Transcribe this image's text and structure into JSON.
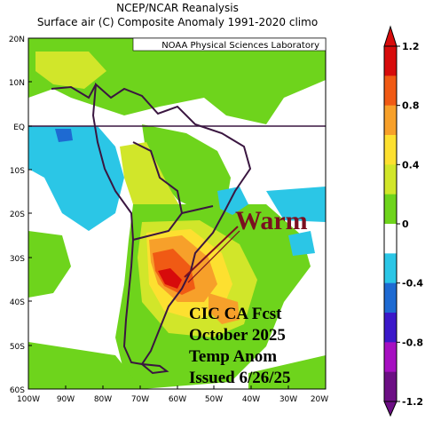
{
  "header": {
    "title": "NCEP/NCAR Reanalysis",
    "subtitle": "Surface air (C) Composite Anomaly 1991-2020 climo"
  },
  "credit": "NOAA Physical Sciences Laboratory",
  "lat_labels": [
    "20N",
    "10N",
    "EQ",
    "10S",
    "20S",
    "30S",
    "40S",
    "50S",
    "60S"
  ],
  "lon_labels": [
    "100W",
    "90W",
    "80W",
    "70W",
    "60W",
    "50W",
    "40W",
    "30W",
    "20W"
  ],
  "annotation": {
    "warm_label": "Warm",
    "forecast_lines": [
      "CIC CA Fcst",
      "October 2025",
      "Temp Anom",
      "Issued 6/26/25"
    ]
  },
  "colorbar": {
    "tick_labels": [
      "1.2",
      "0.8",
      "0.4",
      "0",
      "-0.4",
      "-0.8",
      "-1.2"
    ],
    "colors": [
      "#d70b0b",
      "#f05a14",
      "#f7a02a",
      "#fde030",
      "#d1e62a",
      "#6ed41c",
      "#ffffff",
      "#2bc6e6",
      "#1e6ad2",
      "#3b18c9",
      "#a60fc1",
      "#6c0e84"
    ]
  },
  "grid": {
    "equator_line": "EQ"
  }
}
